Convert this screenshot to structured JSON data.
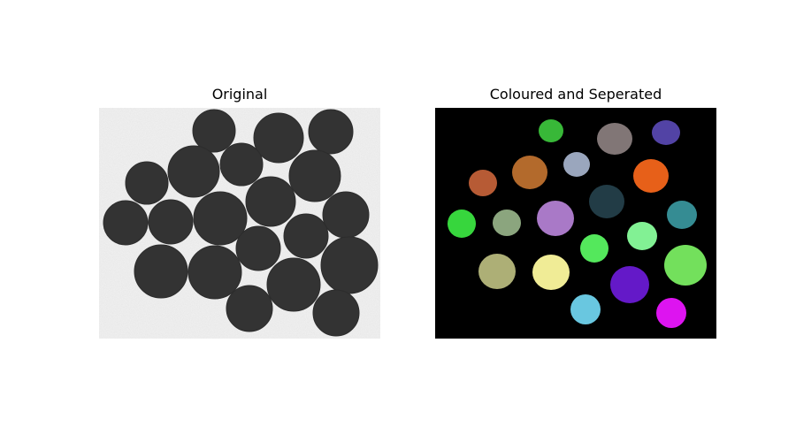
{
  "figure": {
    "left_title": "Original",
    "right_title": "Coloured and Seperated",
    "background_color": "#f4f4f4",
    "object_color": "#333333",
    "mask_background": "#000000",
    "segment_colors": [
      "#38b838",
      "#817676",
      "#5243a5",
      "#b36a2c",
      "#9aa6bd",
      "#e76019",
      "#b75b35",
      "#223c46",
      "#37d63d",
      "#8ba57e",
      "#a979c7",
      "#358c93",
      "#54e85c",
      "#82f194",
      "#adaf76",
      "#f0ec96",
      "#6419c8",
      "#73e05c",
      "#69c7e0",
      "#dd14f0"
    ]
  }
}
